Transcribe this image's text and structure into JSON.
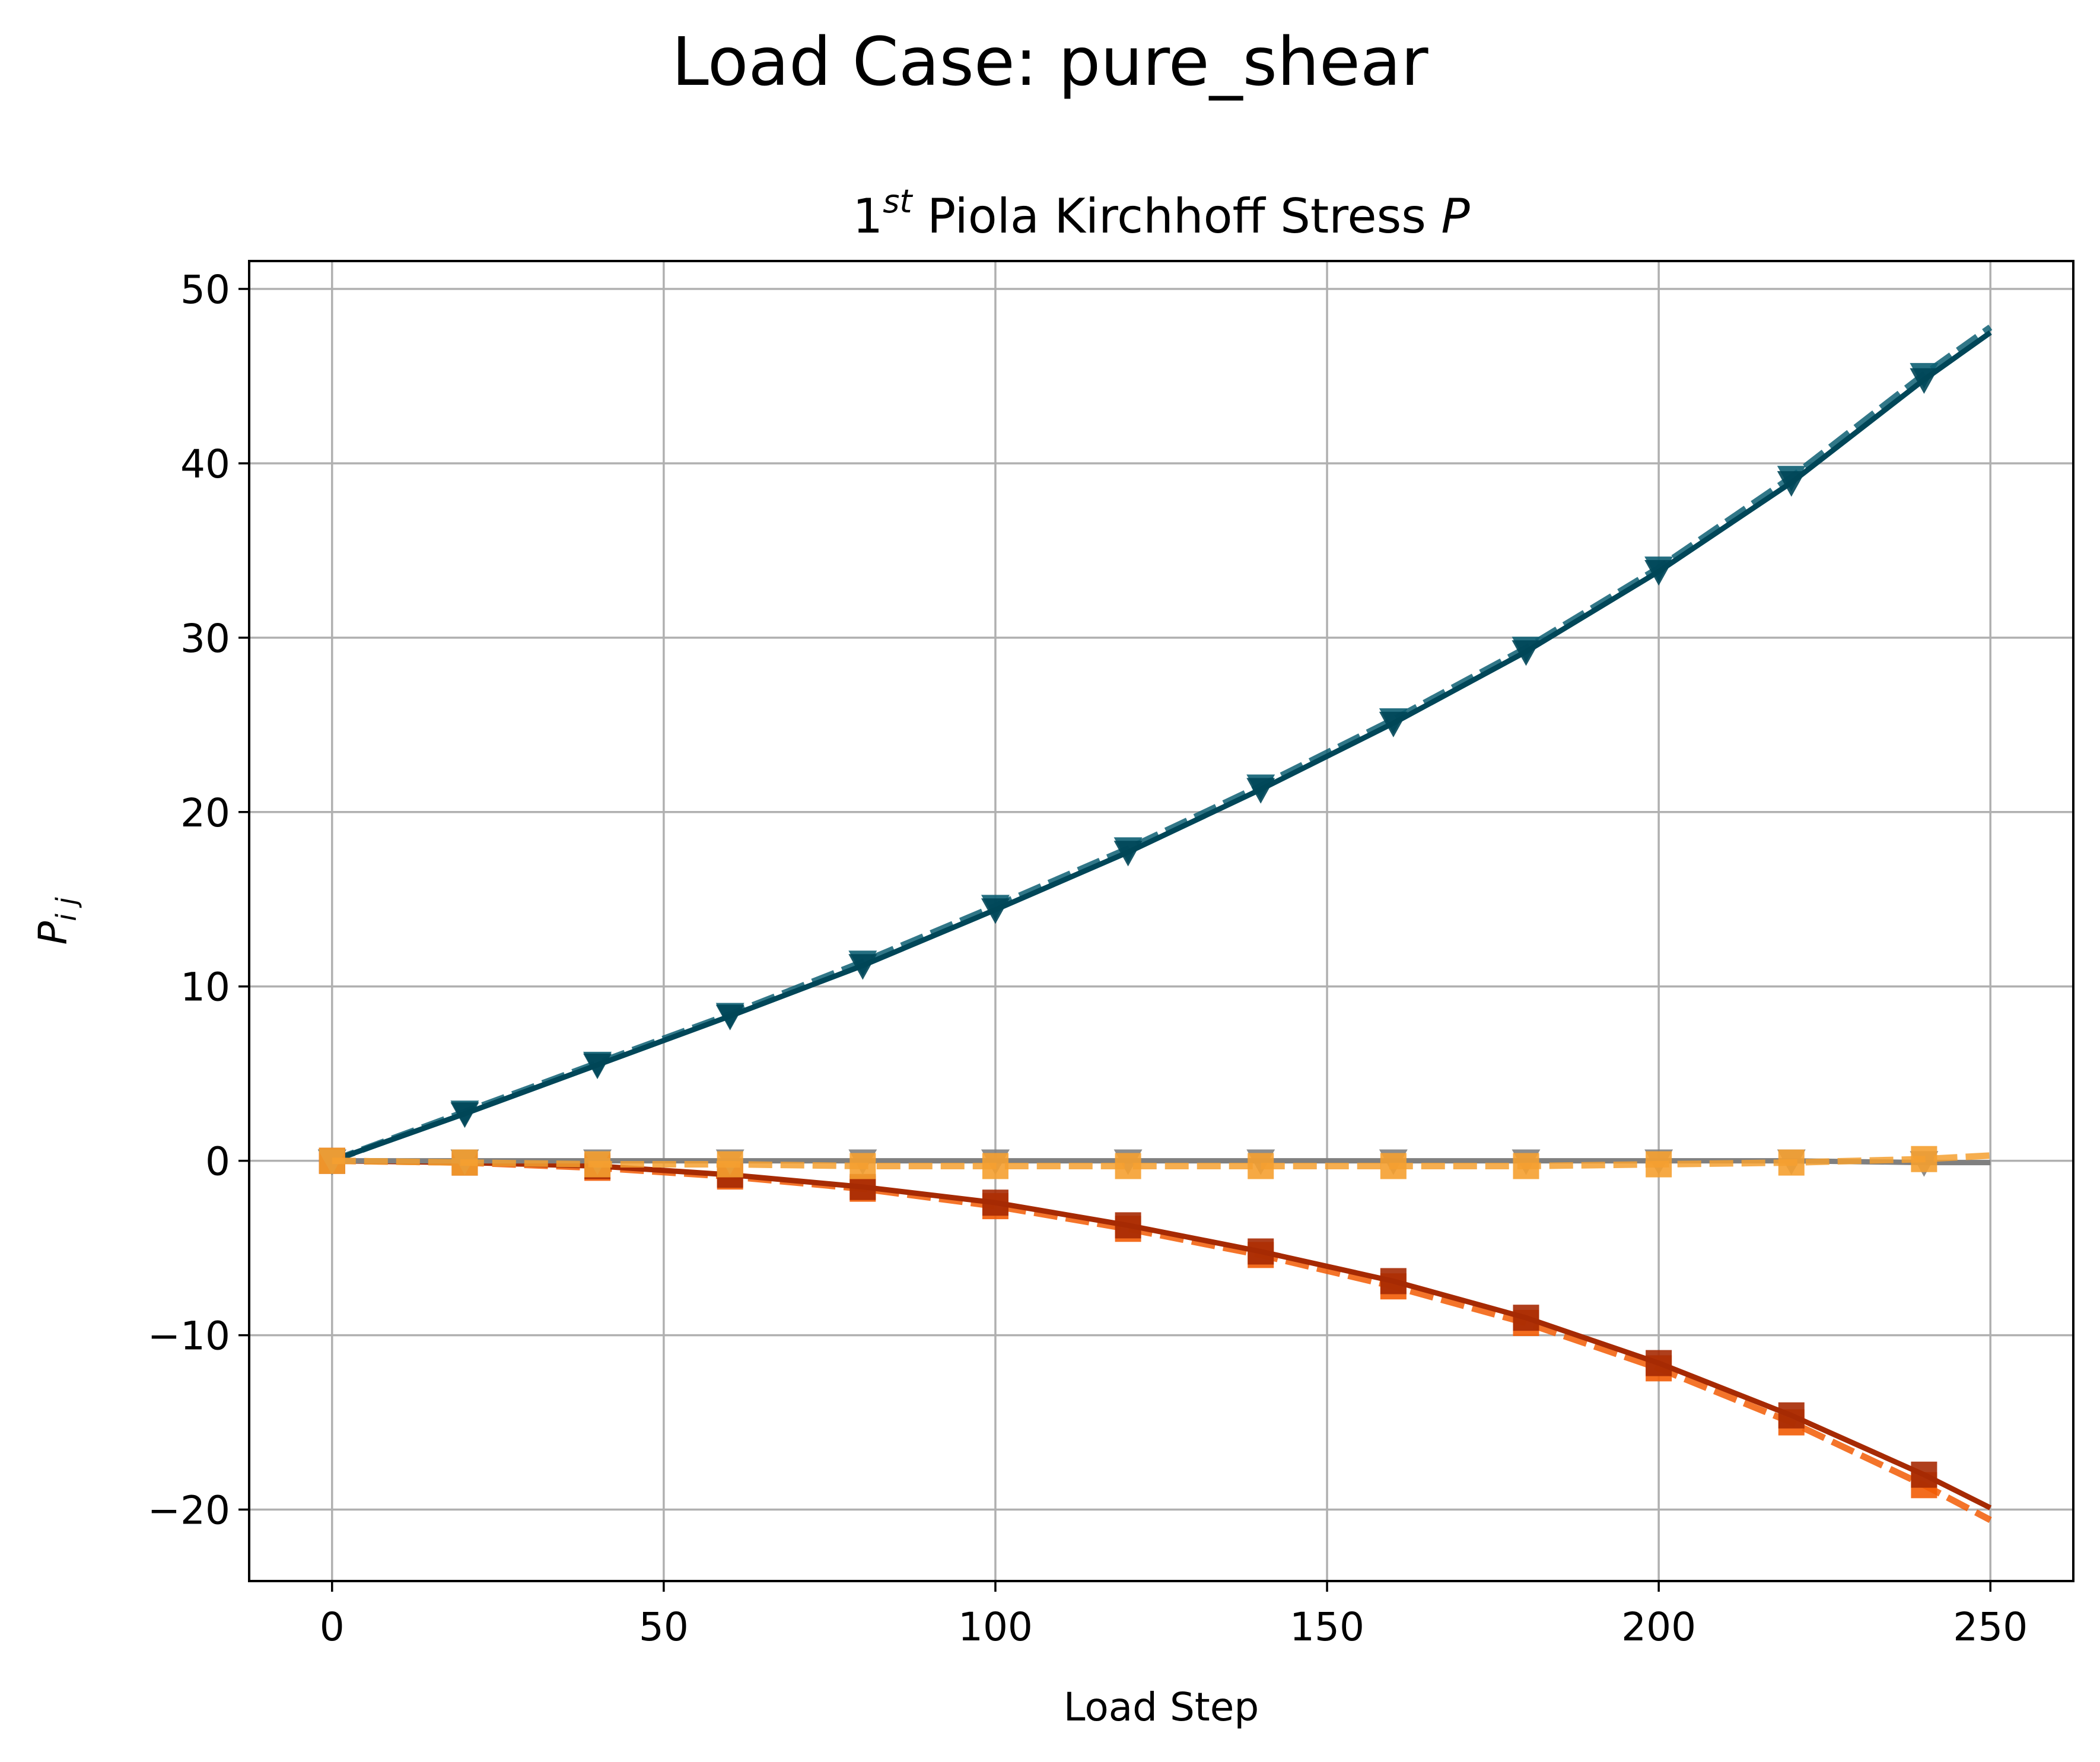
{
  "figure": {
    "suptitle": "Load Case: pure_shear"
  },
  "chart_data": {
    "type": "line",
    "title": {
      "base": "1",
      "superscript": "st",
      "text": " Piola Kirchhoff Stress ",
      "italic": "P"
    },
    "xlabel": "Load Step",
    "ylabel": {
      "base": "P",
      "subscript": "i j"
    },
    "xlim": [
      -12.5,
      262.5
    ],
    "ylim": [
      -24.1,
      51.6
    ],
    "xticks": [
      0,
      50,
      100,
      150,
      200,
      250
    ],
    "yticks": [
      -20,
      -10,
      0,
      10,
      20,
      30,
      40,
      50
    ],
    "ytick_labels": [
      "−20",
      "−10",
      "0",
      "10",
      "20",
      "30",
      "40",
      "50"
    ],
    "xtick_labels": [
      "0",
      "50",
      "100",
      "150",
      "200",
      "250"
    ],
    "grid": true,
    "legend": "none",
    "x": [
      0,
      20,
      40,
      60,
      80,
      100,
      120,
      140,
      160,
      180,
      200,
      220,
      240,
      250
    ],
    "series": [
      {
        "color": "#0d5f73",
        "dashed": true,
        "marker": "triangle-down",
        "values": [
          0,
          2.8,
          5.6,
          8.4,
          11.4,
          14.6,
          17.9,
          21.5,
          25.3,
          29.4,
          34.0,
          39.2,
          45.1,
          47.8
        ]
      },
      {
        "color": "#004658",
        "dashed": false,
        "marker": "triangle-down",
        "values": [
          0,
          2.7,
          5.5,
          8.3,
          11.2,
          14.4,
          17.7,
          21.3,
          25.1,
          29.2,
          33.8,
          38.9,
          44.8,
          47.5
        ]
      },
      {
        "color": "#f25c05",
        "dashed": true,
        "marker": "square",
        "values": [
          0,
          -0.1,
          -0.4,
          -0.9,
          -1.6,
          -2.6,
          -3.9,
          -5.4,
          -7.2,
          -9.3,
          -11.9,
          -15.0,
          -18.6,
          -20.6
        ]
      },
      {
        "color": "#a62a03",
        "dashed": false,
        "marker": "square",
        "values": [
          0,
          -0.1,
          -0.3,
          -0.8,
          -1.5,
          -2.4,
          -3.7,
          -5.2,
          -6.9,
          -9.0,
          -11.6,
          -14.6,
          -18.0,
          -19.9
        ]
      },
      {
        "color": "#7f7f7f",
        "dashed": false,
        "marker": "triangle-down",
        "values": [
          0,
          0,
          0,
          0,
          0,
          0,
          0,
          0,
          0,
          0,
          0,
          0,
          -0.1,
          -0.1
        ]
      },
      {
        "color": "#f5a030",
        "dashed": true,
        "marker": "square",
        "values": [
          0,
          -0.1,
          -0.2,
          -0.2,
          -0.3,
          -0.3,
          -0.3,
          -0.3,
          -0.3,
          -0.3,
          -0.2,
          -0.1,
          0.1,
          0.3
        ]
      }
    ]
  }
}
